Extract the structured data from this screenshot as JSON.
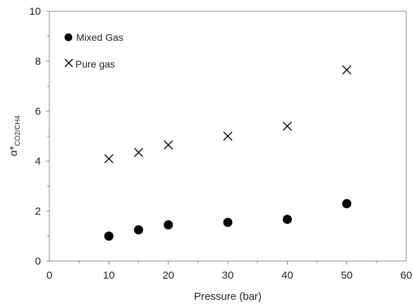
{
  "chart_data": {
    "type": "scatter",
    "xlabel": "Pressure (bar)",
    "ylabel": {
      "main": "α*",
      "sub": "CO2/CH4"
    },
    "xlim": [
      0,
      60
    ],
    "ylim": [
      0,
      10
    ],
    "x_ticks": [
      "0",
      "10",
      "20",
      "30",
      "40",
      "50",
      "60"
    ],
    "y_ticks": [
      "0",
      "2",
      "4",
      "6",
      "8",
      "10"
    ],
    "grid": false,
    "legend_position": "top-left",
    "series": [
      {
        "name": "Mixed Gas",
        "marker": "filled-circle",
        "color": "#000000",
        "points": [
          {
            "x": 10,
            "y": 1.0
          },
          {
            "x": 15,
            "y": 1.25
          },
          {
            "x": 20,
            "y": 1.45
          },
          {
            "x": 30,
            "y": 1.55
          },
          {
            "x": 40,
            "y": 1.67
          },
          {
            "x": 50,
            "y": 2.3
          }
        ]
      },
      {
        "name": "Pure gas",
        "marker": "cross",
        "color": "#000000",
        "points": [
          {
            "x": 10,
            "y": 4.1
          },
          {
            "x": 15,
            "y": 4.35
          },
          {
            "x": 20,
            "y": 4.65
          },
          {
            "x": 30,
            "y": 5.0
          },
          {
            "x": 40,
            "y": 5.4
          },
          {
            "x": 50,
            "y": 7.65
          }
        ]
      }
    ]
  }
}
